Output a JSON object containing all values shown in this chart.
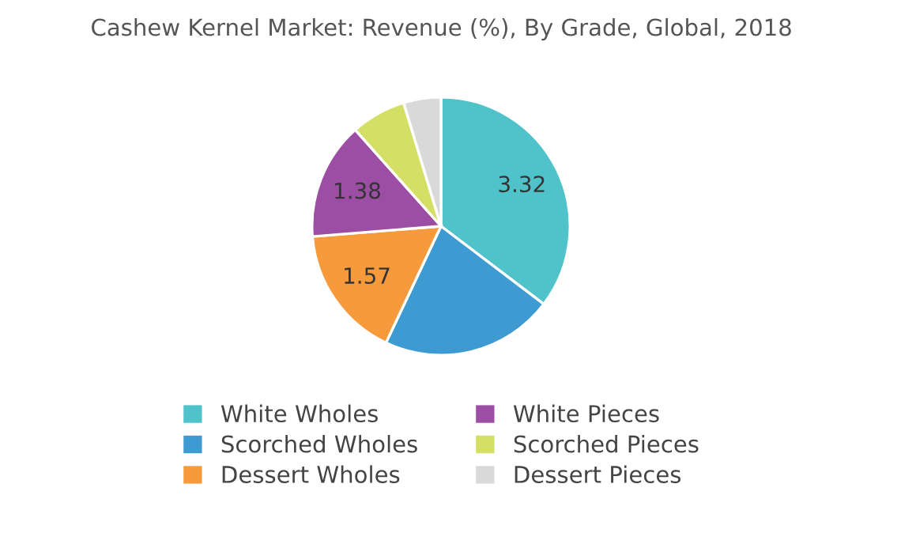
{
  "chart_data": {
    "type": "pie",
    "title": "Cashew Kernel Market: Revenue (%), By Grade, Global, 2018",
    "categories": [
      "White Wholes",
      "Scorched Wholes",
      "Dessert Wholes",
      "White Pieces",
      "Scorched Pieces",
      "Dessert Pieces"
    ],
    "values": [
      3.32,
      2.04,
      1.57,
      1.38,
      0.65,
      0.44
    ],
    "value_labels": [
      "3.32",
      null,
      "1.57",
      "1.38",
      null,
      null
    ],
    "colors": [
      "#4fc3c9",
      "#3d9bd2",
      "#f79a3c",
      "#9b4ea3",
      "#d4e065",
      "#d9d9d9"
    ],
    "legend": "bottom"
  }
}
